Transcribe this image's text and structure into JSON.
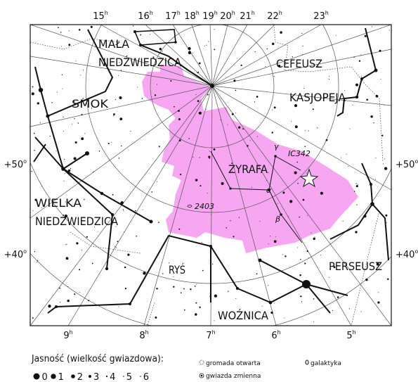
{
  "hour_labels_top": [
    {
      "text": "15",
      "sup": "h"
    },
    {
      "text": "16",
      "sup": "h"
    },
    {
      "text": "17",
      "sup": "h"
    },
    {
      "text": "18",
      "sup": "h"
    },
    {
      "text": "19",
      "sup": "h"
    },
    {
      "text": "20",
      "sup": "h"
    },
    {
      "text": "21",
      "sup": "h"
    },
    {
      "text": "22",
      "sup": "h"
    },
    {
      "text": "23",
      "sup": "h"
    }
  ],
  "hour_labels_bottom": [
    {
      "text": "9",
      "sup": "h"
    },
    {
      "text": "8",
      "sup": "h"
    },
    {
      "text": "7",
      "sup": "h"
    },
    {
      "text": "6",
      "sup": "h"
    },
    {
      "text": "5",
      "sup": "h"
    }
  ],
  "declination_labels_left": [
    {
      "text": "+50",
      "sup": "o"
    },
    {
      "text": "+40",
      "sup": "o"
    }
  ],
  "declination_labels_right": [
    {
      "text": "+50",
      "sup": "o"
    },
    {
      "text": "+40",
      "sup": "o"
    }
  ],
  "constellations": [
    {
      "lines": [
        "MAŁA",
        "NIEDŹWIEDZICA"
      ]
    },
    {
      "lines": [
        "CEFEUSZ"
      ]
    },
    {
      "lines": [
        "SMOK"
      ]
    },
    {
      "lines": [
        "KASJOPEJA"
      ]
    },
    {
      "lines": [
        "ŻYRAFA"
      ]
    },
    {
      "lines": [
        "WIELKA",
        "NIEDŹWIEDZICA"
      ]
    },
    {
      "lines": [
        "RYŚ"
      ]
    },
    {
      "lines": [
        "PERSEUSZ"
      ]
    },
    {
      "lines": [
        "WOŹNICA"
      ]
    }
  ],
  "objects": [
    "IC342",
    "2403",
    "α",
    "β",
    "γ"
  ],
  "legend": {
    "title": "Jasność (wielkość gwiazdowa):",
    "magnitudes": [
      0,
      1,
      2,
      3,
      4,
      5,
      6
    ],
    "symbols": [
      "gromada otwarta",
      "gwiazda zmienna",
      "galaktyka"
    ]
  }
}
